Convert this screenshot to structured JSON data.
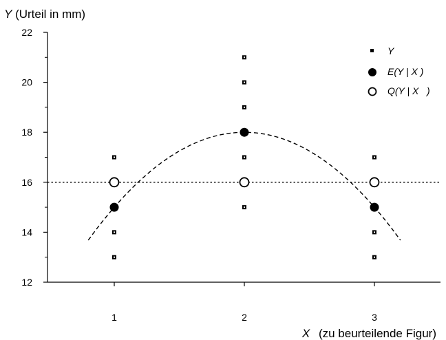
{
  "chart_data": {
    "type": "scatter",
    "ylabel_var": "Y",
    "ylabel_text": "(Urteil in mm)",
    "xlabel_var": "X",
    "xlabel_text": "(zu beurteilende Figur)",
    "xlim": [
      0.5,
      3.5
    ],
    "ylim": [
      12,
      22
    ],
    "x_ticks": [
      1,
      2,
      3
    ],
    "x_tick_labels": [
      "1",
      "2",
      "3"
    ],
    "y_ticks": [
      12,
      14,
      16,
      18,
      20,
      22
    ],
    "y_tick_labels": [
      "12",
      "14",
      "16",
      "18",
      "20",
      "22"
    ],
    "y_minor_ticks": [
      13,
      15,
      17,
      19,
      21
    ],
    "grid": false,
    "legend_position": "top-right",
    "series": [
      {
        "name": "Y",
        "marker": "small-square",
        "color": "#000000",
        "points": [
          [
            1,
            13
          ],
          [
            1,
            14
          ],
          [
            1,
            15
          ],
          [
            1,
            16
          ],
          [
            1,
            17
          ],
          [
            2,
            15
          ],
          [
            2,
            17
          ],
          [
            2,
            18
          ],
          [
            2,
            19
          ],
          [
            2,
            20
          ],
          [
            2,
            21
          ],
          [
            3,
            13
          ],
          [
            3,
            14
          ],
          [
            3,
            15
          ],
          [
            3,
            16
          ],
          [
            3,
            17
          ]
        ]
      },
      {
        "name": "E(Y | X)",
        "marker": "filled-circle",
        "color": "#000000",
        "points": [
          [
            1,
            15
          ],
          [
            2,
            18
          ],
          [
            3,
            15
          ]
        ]
      },
      {
        "name": "Q(Y | X)",
        "marker": "open-circle",
        "color": "#000000",
        "points": [
          [
            1,
            16
          ],
          [
            2,
            16
          ],
          [
            3,
            16
          ]
        ]
      }
    ],
    "lines": [
      {
        "kind": "quadratic-fit",
        "style": "dashed",
        "x_range": [
          0.8,
          3.2
        ],
        "through": [
          [
            1,
            15
          ],
          [
            2,
            18
          ],
          [
            3,
            15
          ]
        ]
      },
      {
        "kind": "horizontal",
        "style": "dotted",
        "y": 16
      }
    ],
    "legend": [
      {
        "var": "Y",
        "rest": ""
      },
      {
        "var": "E(Y | X )",
        "rest": ""
      },
      {
        "var": "Q(Y | X   )",
        "rest": ""
      }
    ]
  }
}
